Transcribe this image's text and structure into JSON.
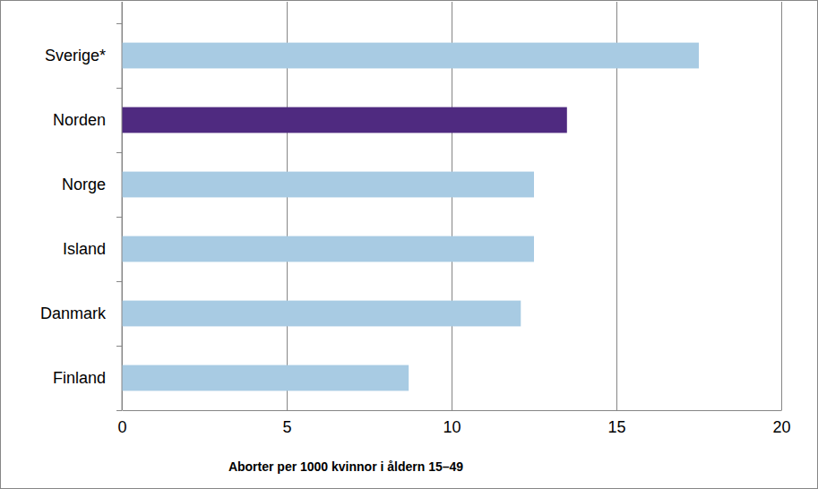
{
  "chart_data": {
    "type": "bar",
    "orientation": "horizontal",
    "categories": [
      "Sverige*",
      "Norden",
      "Norge",
      "Island",
      "Danmark",
      "Finland"
    ],
    "values": [
      17.5,
      13.5,
      12.5,
      12.5,
      12.1,
      8.7
    ],
    "colors": [
      "#a8cbe3",
      "#4f2a80",
      "#a8cbe3",
      "#a8cbe3",
      "#a8cbe3",
      "#a8cbe3"
    ],
    "x_label": "Aborter per 1000 kvinnor i åldern 15–49",
    "xlim": [
      0,
      20
    ],
    "xticks": [
      0,
      5,
      10,
      15,
      20
    ],
    "grid": true
  }
}
